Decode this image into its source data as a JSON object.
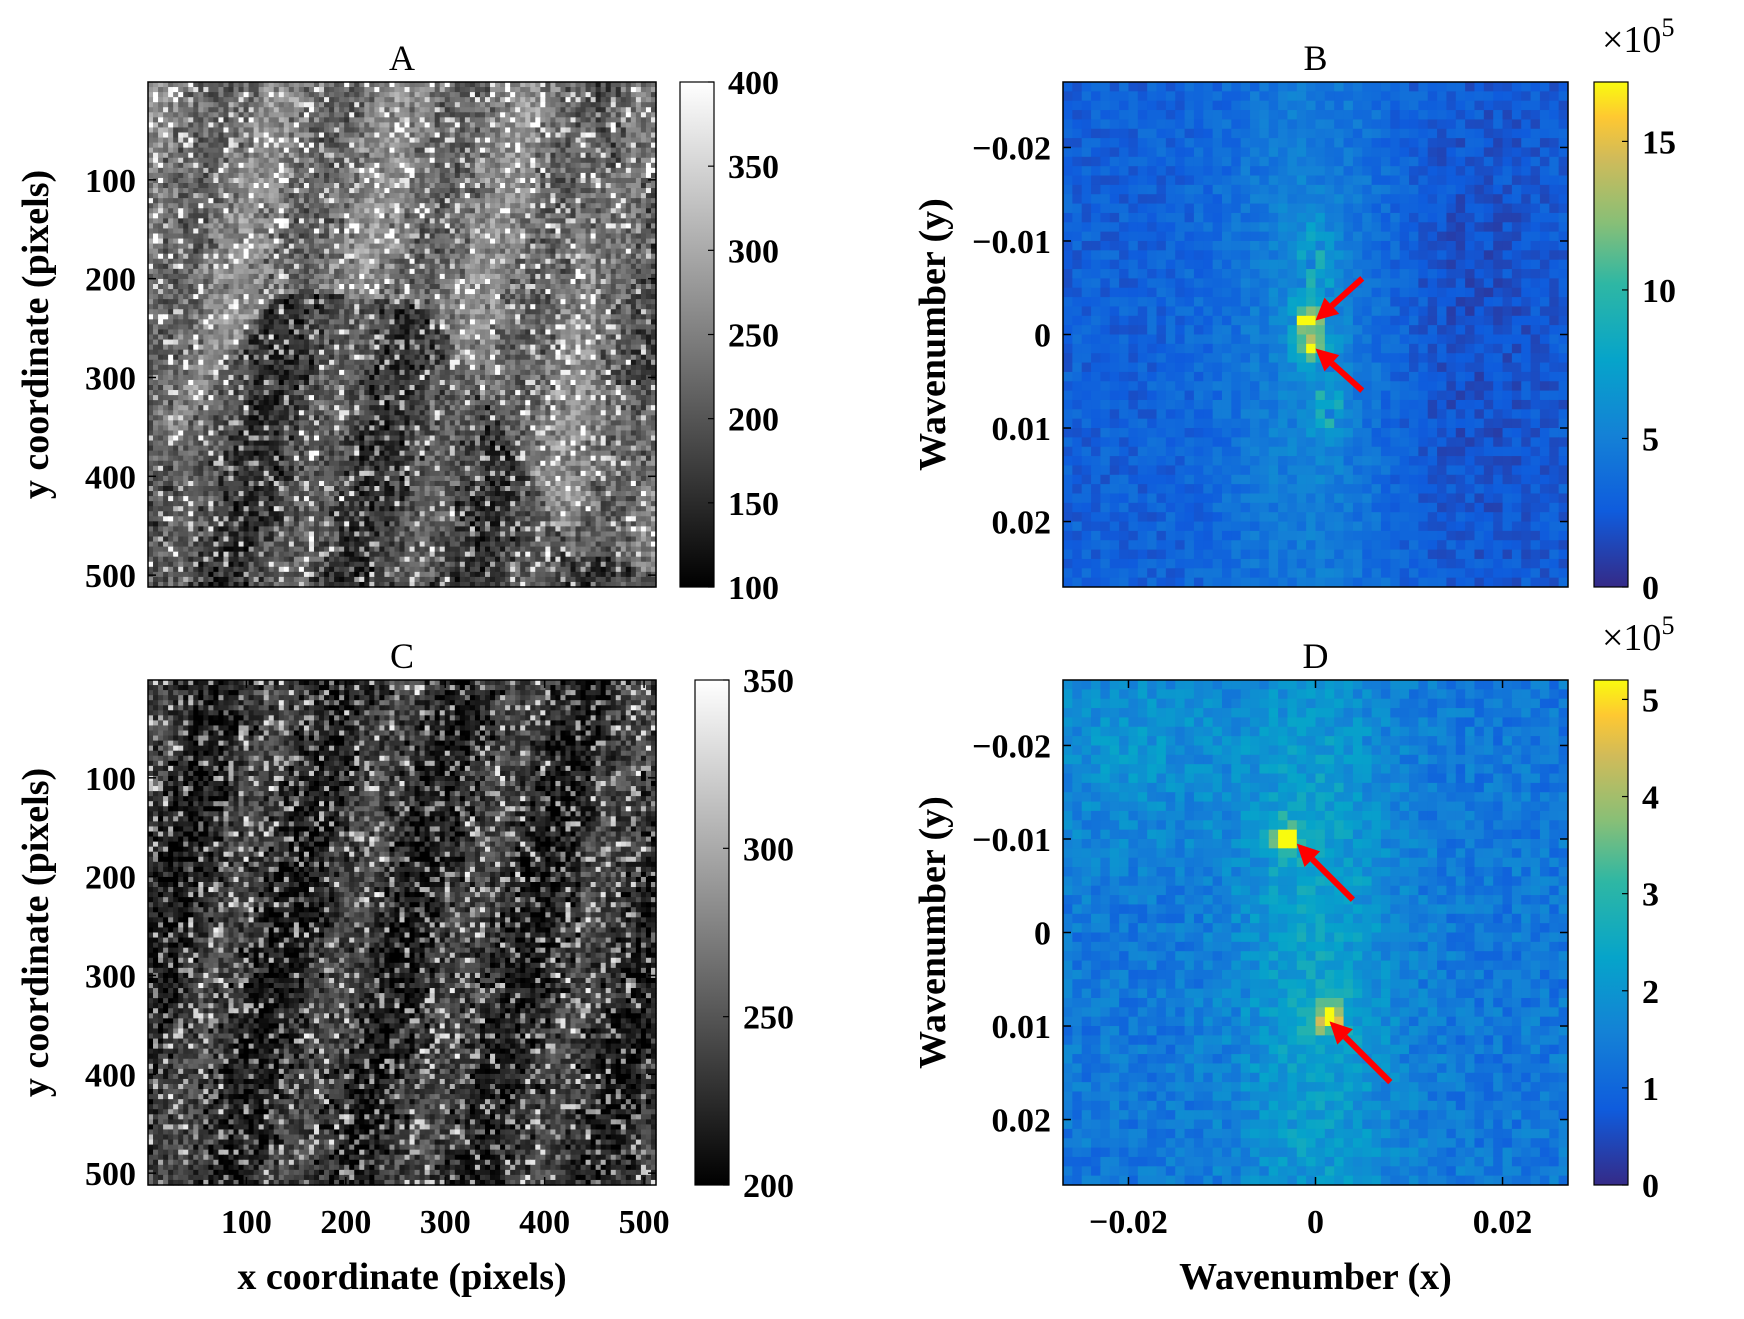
{
  "chart_data": [
    {
      "panel": "A",
      "type": "heatmap",
      "title": "A",
      "xlabel": "",
      "ylabel": "y coordinate (pixels)",
      "xlim": [
        1,
        512
      ],
      "ylim": [
        1,
        512
      ],
      "y_ticks": [
        "100",
        "200",
        "300",
        "400",
        "500"
      ],
      "x_ticks": [],
      "colormap": "gray",
      "colorbar": {
        "min": 100,
        "max": 400,
        "ticks": [
          "100",
          "150",
          "200",
          "250",
          "300",
          "350",
          "400"
        ]
      },
      "description_regions": "textured sea-surface image; lower-centre region darker"
    },
    {
      "panel": "B",
      "type": "heatmap",
      "title": "B",
      "xlabel": "",
      "ylabel": "Wavenumber (y)",
      "xlim": [
        -0.027,
        0.027
      ],
      "ylim": [
        -0.027,
        0.027
      ],
      "y_ticks": [
        "−0.02",
        "−0.01",
        "0",
        "0.01",
        "0.02"
      ],
      "x_ticks": [],
      "colormap": "parula",
      "colorbar": {
        "min": 0,
        "max": 17,
        "ticks": [
          "0",
          "5",
          "10",
          "15"
        ],
        "multiplier": "×10",
        "exponent": "5"
      },
      "peaks": [
        {
          "kx": -0.0005,
          "ky": -0.0015,
          "value": 17
        },
        {
          "kx": -0.0005,
          "ky": 0.0015,
          "value": 14
        }
      ],
      "arrows": [
        {
          "from": [
            0.005,
            -0.006
          ],
          "to": [
            0.0,
            -0.0015
          ]
        },
        {
          "from": [
            0.005,
            0.006
          ],
          "to": [
            0.0,
            0.0015
          ]
        }
      ]
    },
    {
      "panel": "C",
      "type": "heatmap",
      "title": "C",
      "xlabel": "x coordinate (pixels)",
      "ylabel": "y coordinate (pixels)",
      "xlim": [
        1,
        512
      ],
      "ylim": [
        1,
        512
      ],
      "x_ticks": [
        "100",
        "200",
        "300",
        "400",
        "500"
      ],
      "y_ticks": [
        "100",
        "200",
        "300",
        "400",
        "500"
      ],
      "colormap": "gray",
      "colorbar": {
        "min": 200,
        "max": 350,
        "ticks": [
          "200",
          "250",
          "300",
          "350"
        ]
      }
    },
    {
      "panel": "D",
      "type": "heatmap",
      "title": "D",
      "xlabel": "Wavenumber (x)",
      "ylabel": "Wavenumber (y)",
      "xlim": [
        -0.027,
        0.027
      ],
      "ylim": [
        -0.027,
        0.027
      ],
      "x_ticks": [
        "−0.02",
        "0",
        "0.02"
      ],
      "y_ticks": [
        "−0.02",
        "−0.01",
        "0",
        "0.01",
        "0.02"
      ],
      "colormap": "parula",
      "colorbar": {
        "min": 0,
        "max": 5.2,
        "ticks": [
          "0",
          "1",
          "2",
          "3",
          "4",
          "5"
        ],
        "multiplier": "×10",
        "exponent": "5"
      },
      "peaks": [
        {
          "kx": -0.003,
          "ky": -0.01,
          "value": 5
        },
        {
          "kx": 0.0015,
          "ky": 0.009,
          "value": 4.8
        }
      ],
      "arrows": [
        {
          "from": [
            0.004,
            -0.0035
          ],
          "to": [
            -0.002,
            -0.0095
          ]
        },
        {
          "from": [
            0.008,
            0.016
          ],
          "to": [
            0.0015,
            0.0095
          ]
        }
      ]
    }
  ]
}
